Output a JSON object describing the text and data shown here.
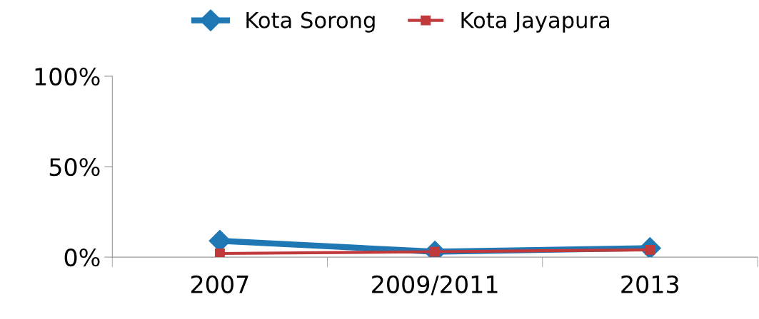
{
  "chart_data": {
    "type": "line",
    "categories": [
      "2007",
      "2009/2011",
      "2013"
    ],
    "series": [
      {
        "name": "Kota Sorong",
        "color": "#1f77b4",
        "marker": "diamond",
        "values": [
          9,
          3,
          5
        ]
      },
      {
        "name": "Kota Jayapura",
        "color": "#c0393b",
        "marker": "square",
        "values": [
          2,
          3,
          4
        ]
      }
    ],
    "ylim": [
      0,
      100
    ],
    "yticks": [
      {
        "value": 0,
        "label": "0%"
      },
      {
        "value": 50,
        "label": "50%"
      },
      {
        "value": 100,
        "label": "100%"
      }
    ],
    "grid": false,
    "legend": "top",
    "line_style": "solid"
  }
}
